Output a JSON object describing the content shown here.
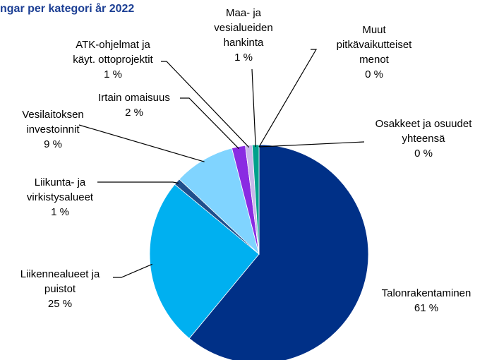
{
  "chart_data": {
    "type": "pie",
    "title": "ngar per kategori år 2022",
    "categories": [
      "Talonrakentaminen",
      "Liikennealueet ja\npuistot",
      "Liikunta- ja\nvirkistysalueet",
      "Vesilaitoksen\ninvestoinnit",
      "Irtain omaisuus",
      "ATK-ohjelmat ja\nkäyt. ottoprojektit",
      "Maa- ja\nvesialueiden\nhankinta",
      "Muut\npitkävaikutteiset\nmenot",
      "Osakkeet ja osuudet\nyhteensä"
    ],
    "values": [
      61,
      25,
      1,
      9,
      2,
      1,
      1,
      0,
      0
    ],
    "value_labels": [
      "61 %",
      "25 %",
      "1 %",
      "9 %",
      "2 %",
      "1 %",
      "1 %",
      "0 %",
      "0 %"
    ],
    "colors": [
      "#003087",
      "#00b0f0",
      "#1f4e8c",
      "#80d4ff",
      "#8a2be2",
      "#c9b8ea",
      "#00a08c",
      "#a0102a",
      "#ff66a8"
    ]
  }
}
